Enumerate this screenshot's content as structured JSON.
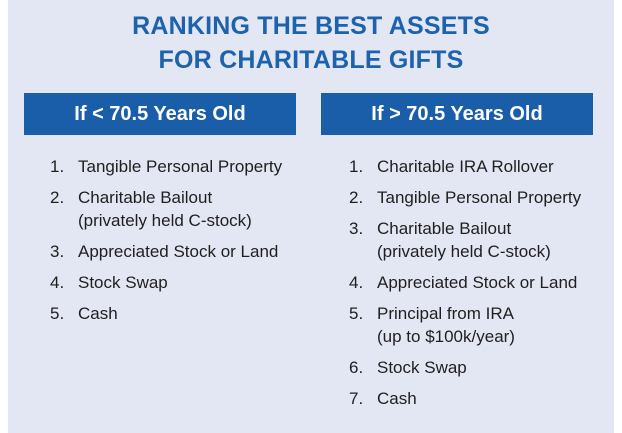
{
  "title_line1": "RANKING THE BEST ASSETS",
  "title_line2": "FOR CHARITABLE GIFTS",
  "left": {
    "heading": "If < 70.5 Years Old",
    "items": [
      {
        "num": "1.",
        "text": "Tangible Personal Property",
        "sub": ""
      },
      {
        "num": "2.",
        "text": "Charitable Bailout",
        "sub": "(privately held C-stock)"
      },
      {
        "num": "3.",
        "text": "Appreciated Stock or Land",
        "sub": ""
      },
      {
        "num": "4.",
        "text": "Stock Swap",
        "sub": ""
      },
      {
        "num": "5.",
        "text": "Cash",
        "sub": ""
      }
    ]
  },
  "right": {
    "heading": "If > 70.5 Years Old",
    "items": [
      {
        "num": "1.",
        "text": "Charitable IRA Rollover",
        "sub": ""
      },
      {
        "num": "2.",
        "text": "Tangible Personal Property",
        "sub": ""
      },
      {
        "num": "3.",
        "text": "Charitable Bailout",
        "sub": "(privately held C-stock)"
      },
      {
        "num": "4.",
        "text": "Appreciated Stock or Land",
        "sub": ""
      },
      {
        "num": "5.",
        "text": "Principal from IRA",
        "sub": "(up to $100k/year)"
      },
      {
        "num": "6.",
        "text": "Stock Swap",
        "sub": ""
      },
      {
        "num": "7.",
        "text": "Cash",
        "sub": ""
      }
    ]
  },
  "colors": {
    "title": "#1c62ad",
    "header_bg": "#1a5ea9",
    "panel_bg": "#e3e6f3"
  }
}
